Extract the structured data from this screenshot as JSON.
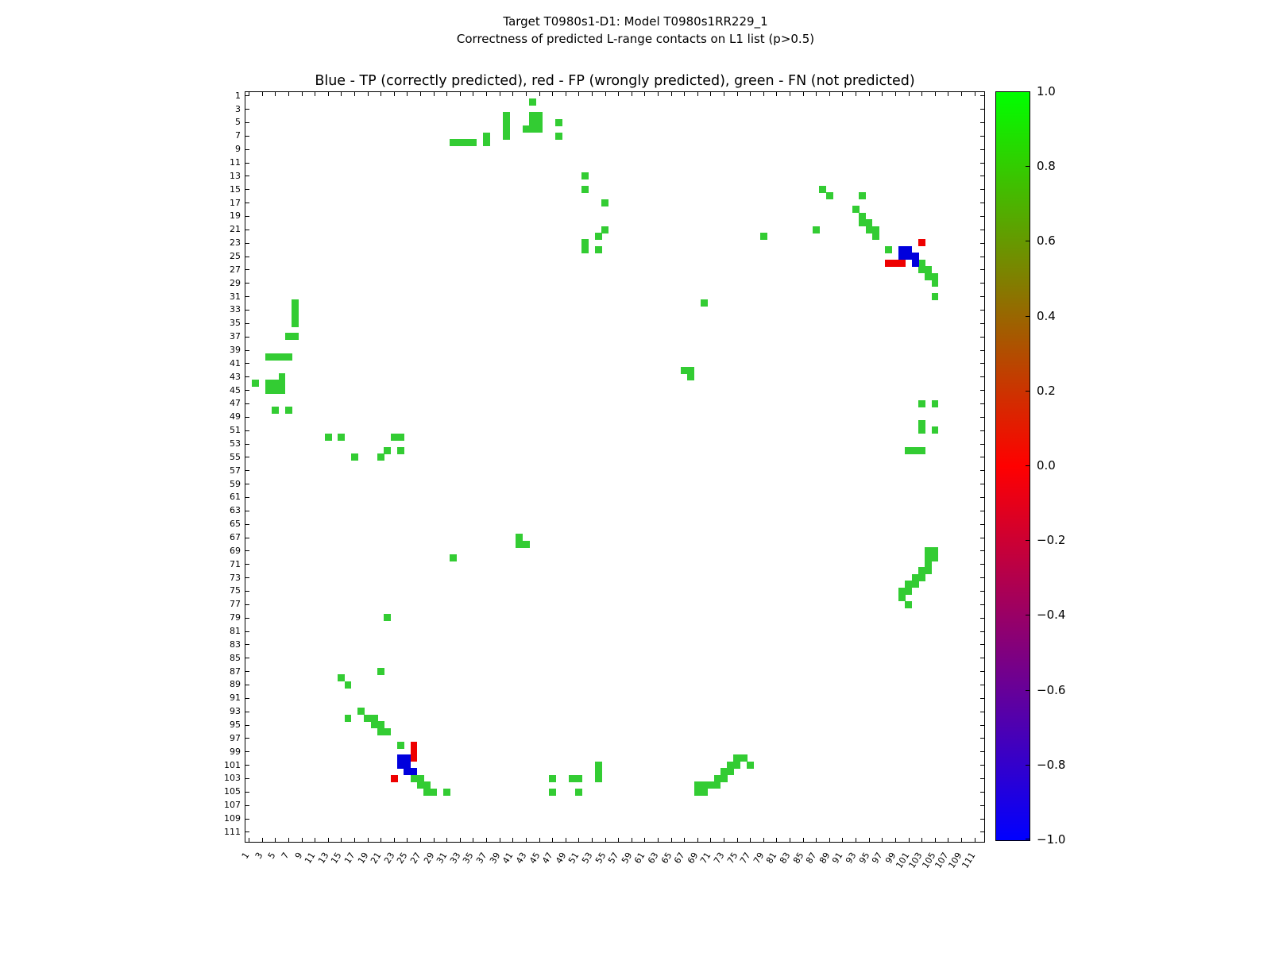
{
  "suptitle": {
    "line1": "Target T0980s1-D1: Model T0980s1RR229_1",
    "line2": "Correctness of predicted L-range contacts on L1 list (p>0.5)"
  },
  "chart_data": {
    "type": "heatmap",
    "title": "Blue - TP (correctly predicted), red - FP (wrongly predicted), green - FN (not predicted)",
    "legend": {
      "TP": "blue (correctly predicted)",
      "FP": "red (wrongly predicted)",
      "FN": "green (not predicted)"
    },
    "grid": false,
    "axis": {
      "min": 1,
      "max": 111,
      "cells": 112,
      "tick_step": 2,
      "tick_labels": [
        "1",
        "3",
        "5",
        "7",
        "9",
        "11",
        "13",
        "15",
        "17",
        "19",
        "21",
        "23",
        "25",
        "27",
        "29",
        "31",
        "33",
        "35",
        "37",
        "39",
        "41",
        "43",
        "45",
        "47",
        "49",
        "51",
        "53",
        "55",
        "57",
        "59",
        "61",
        "63",
        "65",
        "67",
        "69",
        "71",
        "73",
        "75",
        "77",
        "79",
        "81",
        "83",
        "85",
        "87",
        "89",
        "91",
        "93",
        "95",
        "97",
        "99",
        "101",
        "103",
        "105",
        "107",
        "109",
        "111"
      ]
    },
    "colors": {
      "TP": "#0000dd",
      "FP": "#ee0000",
      "FN": "#33cc33"
    },
    "colorbar": {
      "top": "#00ff00",
      "middle": "#ff0000",
      "bottom": "#0000ff",
      "tick_labels": [
        "1.0",
        "0.8",
        "0.6",
        "0.4",
        "0.2",
        "0.0",
        "−0.2",
        "−0.4",
        "−0.6",
        "−0.8",
        "−1.0"
      ]
    },
    "symmetric": true,
    "contacts_format": "[i, j, type]; residue pair plotted at (i,j) and (j,i)",
    "contacts": [
      [
        2,
        44,
        "FN"
      ],
      [
        4,
        40,
        "FN"
      ],
      [
        4,
        44,
        "FN"
      ],
      [
        4,
        45,
        "FN"
      ],
      [
        5,
        40,
        "FN"
      ],
      [
        5,
        44,
        "FN"
      ],
      [
        5,
        45,
        "FN"
      ],
      [
        5,
        48,
        "FN"
      ],
      [
        6,
        40,
        "FN"
      ],
      [
        6,
        43,
        "FN"
      ],
      [
        6,
        44,
        "FN"
      ],
      [
        6,
        45,
        "FN"
      ],
      [
        7,
        37,
        "FN"
      ],
      [
        7,
        40,
        "FN"
      ],
      [
        7,
        48,
        "FN"
      ],
      [
        8,
        32,
        "FN"
      ],
      [
        8,
        33,
        "FN"
      ],
      [
        8,
        34,
        "FN"
      ],
      [
        8,
        35,
        "FN"
      ],
      [
        8,
        37,
        "FN"
      ],
      [
        13,
        52,
        "FN"
      ],
      [
        15,
        52,
        "FN"
      ],
      [
        17,
        55,
        "FN"
      ],
      [
        21,
        55,
        "FN"
      ],
      [
        22,
        54,
        "FN"
      ],
      [
        23,
        52,
        "FN"
      ],
      [
        24,
        52,
        "FN"
      ],
      [
        24,
        54,
        "FN"
      ],
      [
        15,
        88,
        "FN"
      ],
      [
        16,
        89,
        "FN"
      ],
      [
        16,
        94,
        "FN"
      ],
      [
        18,
        93,
        "FN"
      ],
      [
        19,
        94,
        "FN"
      ],
      [
        20,
        94,
        "FN"
      ],
      [
        20,
        95,
        "FN"
      ],
      [
        21,
        87,
        "FN"
      ],
      [
        21,
        95,
        "FN"
      ],
      [
        21,
        96,
        "FN"
      ],
      [
        22,
        79,
        "FN"
      ],
      [
        22,
        96,
        "FN"
      ],
      [
        24,
        98,
        "FN"
      ],
      [
        23,
        103,
        "FP"
      ],
      [
        26,
        98,
        "FP"
      ],
      [
        26,
        99,
        "FP"
      ],
      [
        26,
        100,
        "FP"
      ],
      [
        24,
        100,
        "TP"
      ],
      [
        24,
        101,
        "TP"
      ],
      [
        25,
        100,
        "TP"
      ],
      [
        25,
        101,
        "TP"
      ],
      [
        25,
        102,
        "TP"
      ],
      [
        26,
        102,
        "TP"
      ],
      [
        26,
        103,
        "FN"
      ],
      [
        27,
        103,
        "FN"
      ],
      [
        27,
        104,
        "FN"
      ],
      [
        28,
        104,
        "FN"
      ],
      [
        28,
        105,
        "FN"
      ],
      [
        29,
        105,
        "FN"
      ],
      [
        31,
        105,
        "FN"
      ],
      [
        32,
        70,
        "FN"
      ],
      [
        42,
        67,
        "FN"
      ],
      [
        42,
        68,
        "FN"
      ],
      [
        43,
        68,
        "FN"
      ],
      [
        47,
        103,
        "FN"
      ],
      [
        47,
        105,
        "FN"
      ],
      [
        50,
        103,
        "FN"
      ],
      [
        51,
        103,
        "FN"
      ],
      [
        51,
        105,
        "FN"
      ],
      [
        54,
        101,
        "FN"
      ],
      [
        54,
        102,
        "FN"
      ],
      [
        54,
        103,
        "FN"
      ],
      [
        69,
        104,
        "FN"
      ],
      [
        69,
        105,
        "FN"
      ],
      [
        70,
        104,
        "FN"
      ],
      [
        70,
        105,
        "FN"
      ],
      [
        71,
        104,
        "FN"
      ],
      [
        72,
        103,
        "FN"
      ],
      [
        72,
        104,
        "FN"
      ],
      [
        73,
        102,
        "FN"
      ],
      [
        73,
        103,
        "FN"
      ],
      [
        74,
        101,
        "FN"
      ],
      [
        74,
        102,
        "FN"
      ],
      [
        75,
        100,
        "FN"
      ],
      [
        75,
        101,
        "FN"
      ],
      [
        76,
        100,
        "FN"
      ],
      [
        77,
        101,
        "FN"
      ]
    ]
  }
}
